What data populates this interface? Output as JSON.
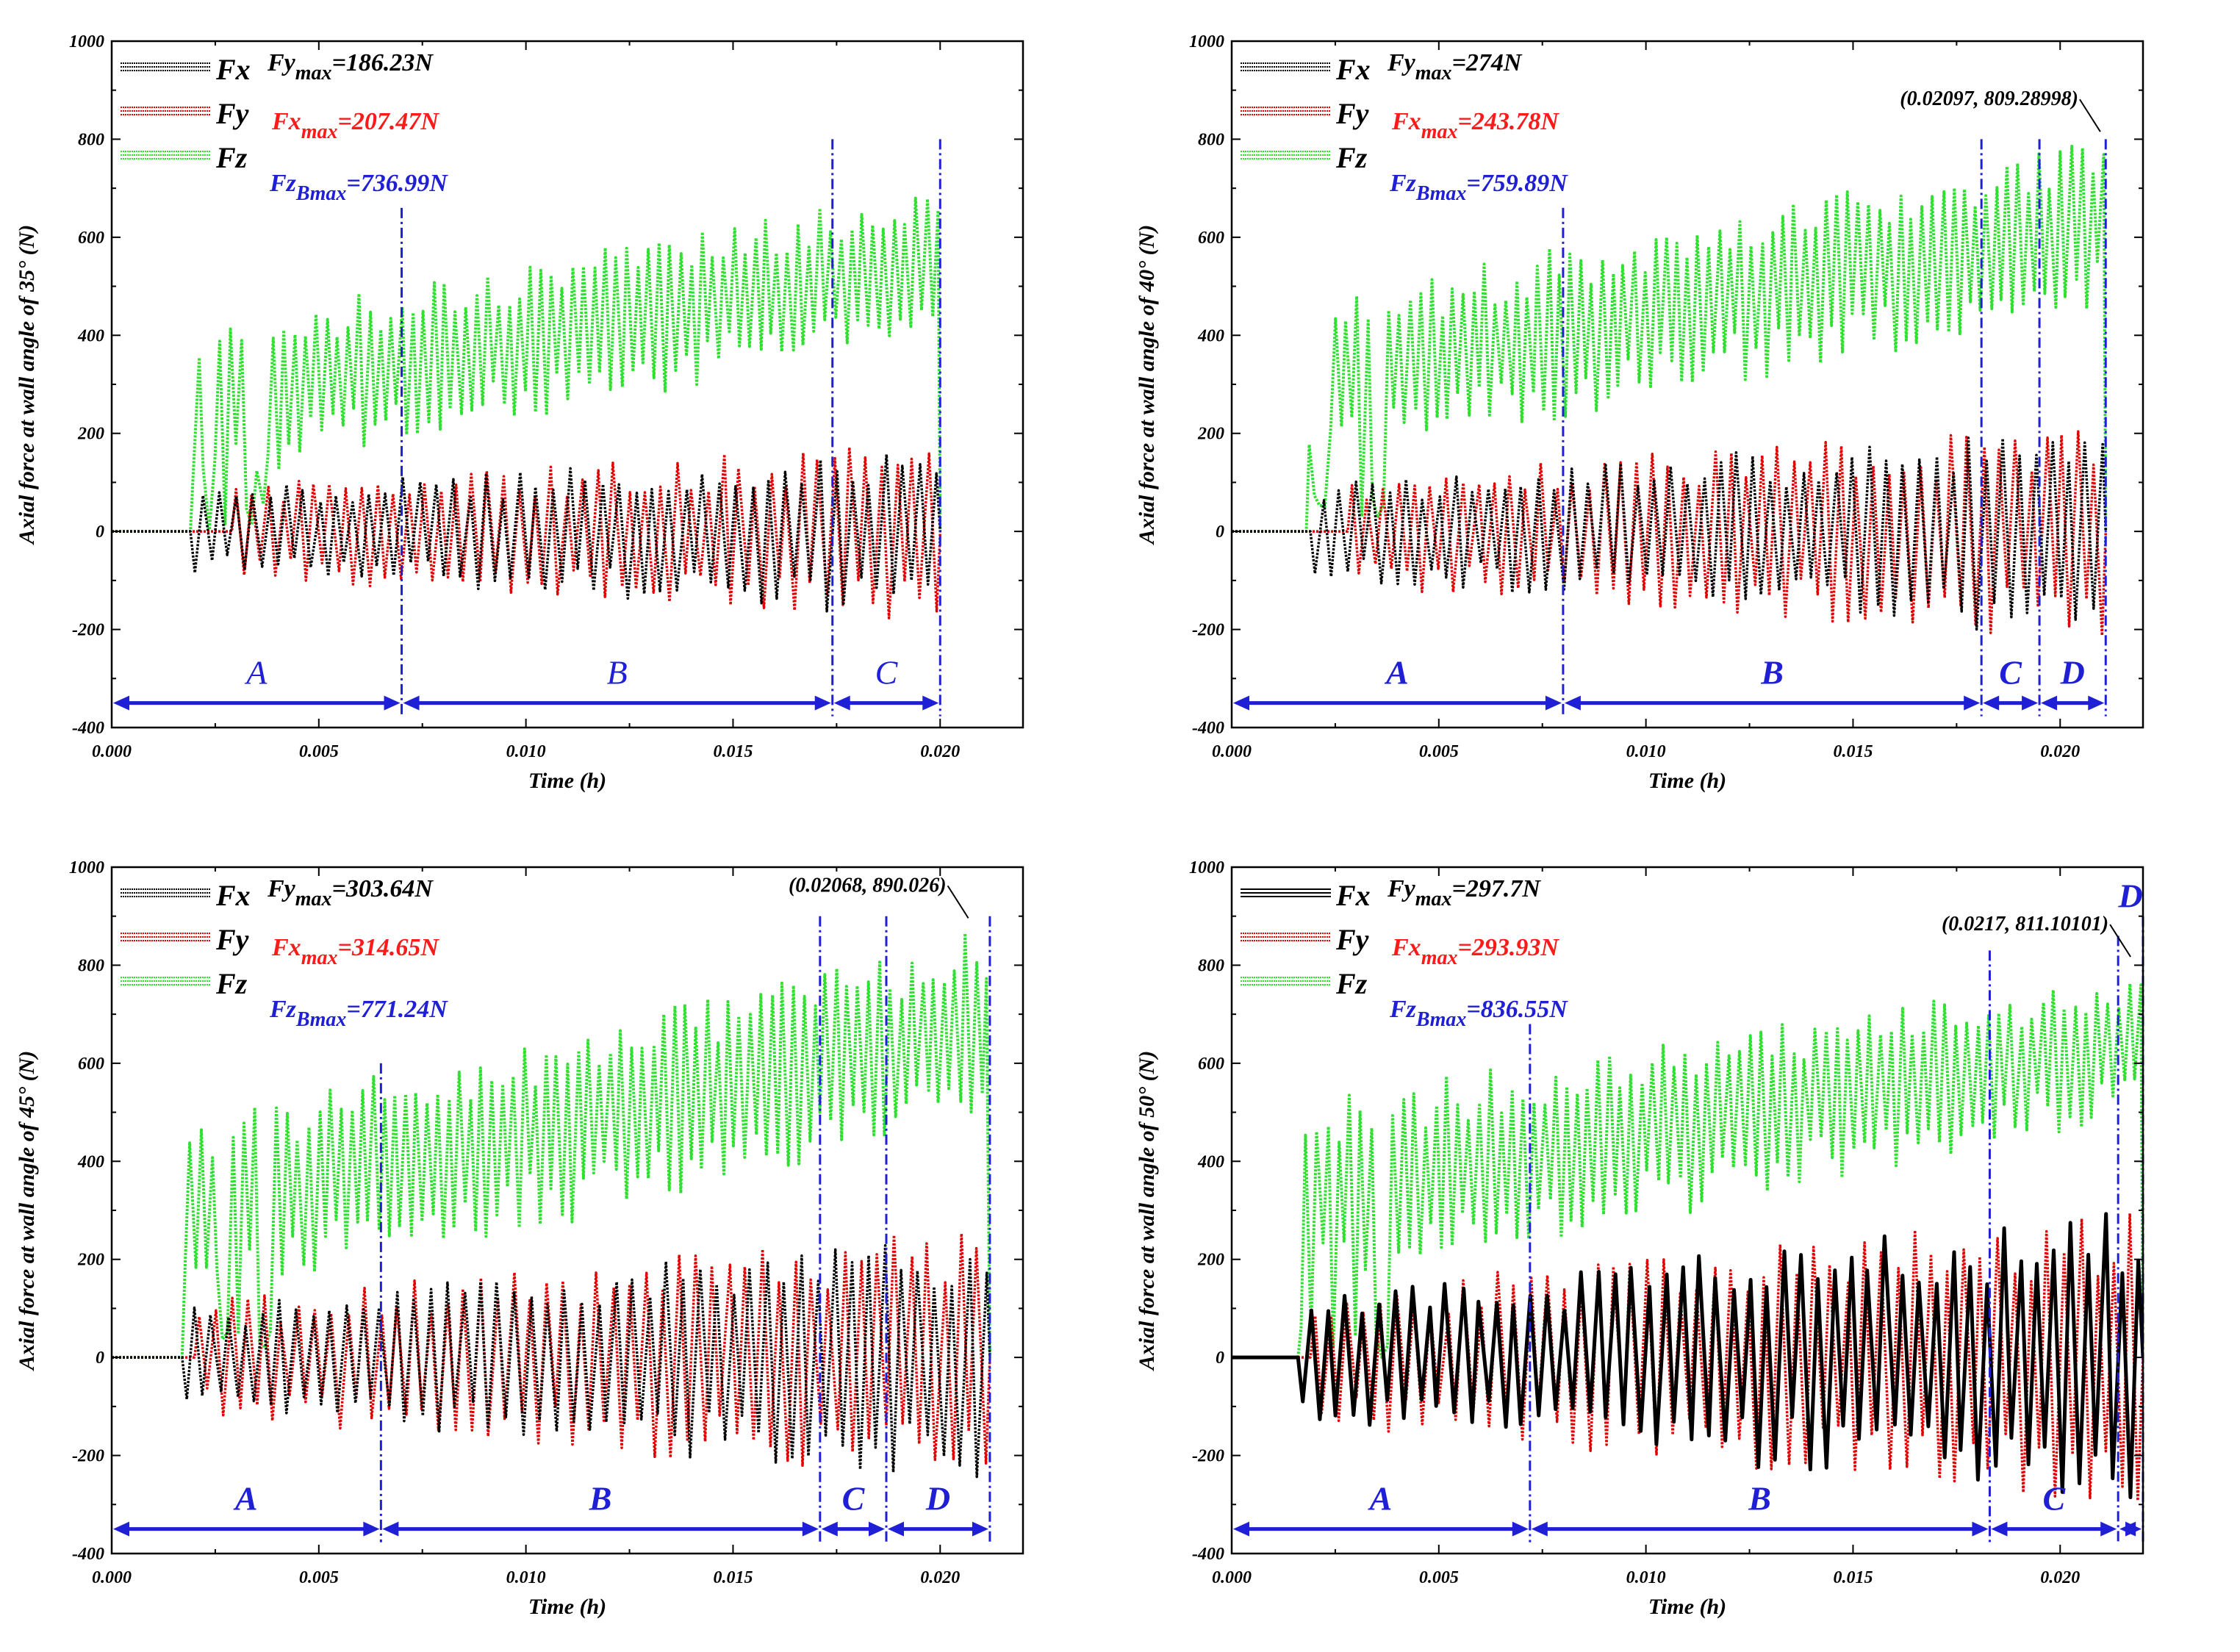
{
  "panels": [
    {
      "ylabel": "Axial force at wall angle of 35° (N)",
      "xlabel": "Time (h)",
      "legend": [
        "Fx",
        "Fy",
        "Fz"
      ],
      "fy_max": {
        "name": "Fy",
        "sub": "max",
        "value": "=186.23N"
      },
      "fx_max": {
        "name": "Fx",
        "sub": "max",
        "value": "=207.47N"
      },
      "fz_bmax": {
        "name": "Fz",
        "sub": "Bmax",
        "value": "=736.99N"
      },
      "peak_label": "",
      "region_labels": [
        "A",
        "B",
        "C"
      ],
      "region_bold": false
    },
    {
      "ylabel": "Axial force at wall angle of 40° (N)",
      "xlabel": "Time (h)",
      "legend": [
        "Fx",
        "Fy",
        "Fz"
      ],
      "fy_max": {
        "name": "Fy",
        "sub": "max",
        "value": "=274N"
      },
      "fx_max": {
        "name": "Fx",
        "sub": "max",
        "value": "=243.78N"
      },
      "fz_bmax": {
        "name": "Fz",
        "sub": "Bmax",
        "value": "=759.89N"
      },
      "peak_label": "(0.02097, 809.28998)",
      "region_labels": [
        "A",
        "B",
        "C",
        "D"
      ],
      "region_bold": true
    },
    {
      "ylabel": "Axial force at wall angle of 45° (N)",
      "xlabel": "Time (h)",
      "legend": [
        "Fx",
        "Fy",
        "Fz"
      ],
      "fy_max": {
        "name": "Fy",
        "sub": "max",
        "value": "=303.64N"
      },
      "fx_max": {
        "name": "Fx",
        "sub": "max",
        "value": "=314.65N"
      },
      "fz_bmax": {
        "name": "Fz",
        "sub": "Bmax",
        "value": "=771.24N"
      },
      "peak_label": "(0.02068, 890.026)",
      "region_labels": [
        "A",
        "B",
        "C",
        "D"
      ],
      "region_bold": true
    },
    {
      "ylabel": "Axial force at wall angle of 50° (N)",
      "xlabel": "Time (h)",
      "legend": [
        "Fx",
        "Fy",
        "Fz"
      ],
      "fy_max": {
        "name": "Fy",
        "sub": "max",
        "value": "=297.7N"
      },
      "fx_max": {
        "name": "Fx",
        "sub": "max",
        "value": "=293.93N"
      },
      "fz_bmax": {
        "name": "Fz",
        "sub": "Bmax",
        "value": "=836.55N"
      },
      "peak_label": "(0.0217, 811.10101)",
      "region_labels": [
        "A",
        "B",
        "C",
        "D"
      ],
      "region_bold": true
    }
  ],
  "chart_data": [
    {
      "type": "line",
      "xlabel": "Time (h)",
      "ylabel": "Axial force at wall angle of 35° (N)",
      "xlim": [
        0,
        0.022
      ],
      "ylim": [
        -400,
        1000
      ],
      "x_ticks": [
        "0.000",
        "0.005",
        "0.010",
        "0.015",
        "0.020"
      ],
      "y_ticks": [
        "-400",
        "-200",
        "0",
        "200",
        "400",
        "600",
        "800",
        "1000"
      ],
      "legend_position": "top-left",
      "series": [
        {
          "name": "Fx",
          "color": "#000000",
          "style": "dashed",
          "start": 0.0019,
          "end": 0.02,
          "amp_start": 80,
          "amp_end": 170,
          "bias": 0,
          "cycles": 45
        },
        {
          "name": "Fy",
          "color": "#e00000",
          "style": "dashed",
          "start": 0.0029,
          "end": 0.02,
          "amp_start": 90,
          "amp_end": 175,
          "bias": 0,
          "cycles": 45
        },
        {
          "name": "Fz",
          "color": "#2ee02e",
          "style": "dashed",
          "start": 0.0019,
          "end": 0.02,
          "base_start": 260,
          "base_end": 560,
          "amp_start": 150,
          "amp_end": 130,
          "cycles": 70
        }
      ],
      "region_boundaries": [
        0.0,
        0.007,
        0.0174,
        0.02
      ],
      "guide_tops": [
        660,
        800,
        800
      ],
      "arrow_y": -350,
      "peak": null,
      "tip_point": null
    },
    {
      "type": "line",
      "xlabel": "Time (h)",
      "ylabel": "Axial force at wall angle of 40° (N)",
      "xlim": [
        0,
        0.022
      ],
      "ylim": [
        -400,
        1000
      ],
      "x_ticks": [
        "0.000",
        "0.005",
        "0.010",
        "0.015",
        "0.020"
      ],
      "y_ticks": [
        "-400",
        "-200",
        "0",
        "200",
        "400",
        "600",
        "800",
        "1000"
      ],
      "legend_position": "top-left",
      "series": [
        {
          "name": "Fx",
          "color": "#000000",
          "style": "dashed",
          "start": 0.0019,
          "end": 0.0211,
          "amp_start": 90,
          "amp_end": 210,
          "bias": 0,
          "cycles": 48
        },
        {
          "name": "Fy",
          "color": "#e00000",
          "style": "dashed",
          "start": 0.0028,
          "end": 0.0211,
          "amp_start": 110,
          "amp_end": 215,
          "bias": 0,
          "cycles": 48
        },
        {
          "name": "Fz",
          "color": "#2ee02e",
          "style": "dashed",
          "start": 0.0018,
          "end": 0.0211,
          "base_start": 300,
          "base_end": 640,
          "amp_start": 160,
          "amp_end": 150,
          "cycles": 75
        }
      ],
      "region_boundaries": [
        0.0,
        0.008,
        0.0181,
        0.0195,
        0.0211
      ],
      "guide_tops": [
        660,
        800,
        800,
        800
      ],
      "arrow_y": -350,
      "peak": {
        "x": 0.02097,
        "y": 809.28998
      },
      "tip_point": null
    },
    {
      "type": "line",
      "xlabel": "Time (h)",
      "ylabel": "Axial force at wall angle of 45° (N)",
      "xlim": [
        0,
        0.022
      ],
      "ylim": [
        -400,
        1000
      ],
      "x_ticks": [
        "0.000",
        "0.005",
        "0.010",
        "0.015",
        "0.020"
      ],
      "y_ticks": [
        "-400",
        "-200",
        "0",
        "200",
        "400",
        "600",
        "800",
        "1000"
      ],
      "legend_position": "top-left",
      "series": [
        {
          "name": "Fx",
          "color": "#000000",
          "style": "dashed",
          "start": 0.0017,
          "end": 0.0212,
          "amp_start": 100,
          "amp_end": 250,
          "bias": 0,
          "cycles": 48
        },
        {
          "name": "Fy",
          "color": "#e00000",
          "style": "dashed",
          "start": 0.002,
          "end": 0.0212,
          "amp_start": 110,
          "amp_end": 260,
          "bias": 0,
          "cycles": 48
        },
        {
          "name": "Fz",
          "color": "#2ee02e",
          "style": "dashed",
          "start": 0.0017,
          "end": 0.0212,
          "base_start": 300,
          "base_end": 680,
          "amp_start": 170,
          "amp_end": 180,
          "cycles": 75
        }
      ],
      "region_boundaries": [
        0.0,
        0.0065,
        0.0171,
        0.0187,
        0.0212
      ],
      "guide_tops": [
        600,
        900,
        900,
        900
      ],
      "arrow_y": -350,
      "peak": {
        "x": 0.02068,
        "y": 890.026
      },
      "tip_point": null
    },
    {
      "type": "line",
      "xlabel": "Time (h)",
      "ylabel": "Axial force at wall angle of 50° (N)",
      "xlim": [
        0,
        0.022
      ],
      "ylim": [
        -400,
        1000
      ],
      "x_ticks": [
        "0.000",
        "0.005",
        "0.010",
        "0.015",
        "0.020"
      ],
      "y_ticks": [
        "-400",
        "-200",
        "0",
        "200",
        "400",
        "600",
        "800",
        "1000"
      ],
      "legend_position": "top-left",
      "series": [
        {
          "name": "Fx",
          "color": "#000000",
          "style": "solid",
          "start": 0.0016,
          "end": 0.022,
          "amp_start": 120,
          "amp_end": 290,
          "bias": 0,
          "cycles": 50
        },
        {
          "name": "Fy",
          "color": "#e00000",
          "style": "dashed",
          "start": 0.0019,
          "end": 0.022,
          "amp_start": 130,
          "amp_end": 290,
          "bias": 0,
          "cycles": 50
        },
        {
          "name": "Fz",
          "color": "#2ee02e",
          "style": "dashed",
          "start": 0.0016,
          "end": 0.022,
          "base_start": 330,
          "base_end": 650,
          "amp_start": 180,
          "amp_end": 130,
          "cycles": 78
        }
      ],
      "region_boundaries": [
        0.0,
        0.0072,
        0.0183,
        0.0214,
        0.022
      ],
      "guide_tops": [
        680,
        830,
        860,
        900
      ],
      "arrow_y": -350,
      "peak": {
        "x": 0.0217,
        "y": 811.10101
      },
      "tip_point": null
    }
  ],
  "colors": {
    "fx": "#000000",
    "fy": "#e00000",
    "fz": "#2ee02e",
    "annotation_blue": "#1f1fd6",
    "max_red": "#ff1a1a"
  }
}
